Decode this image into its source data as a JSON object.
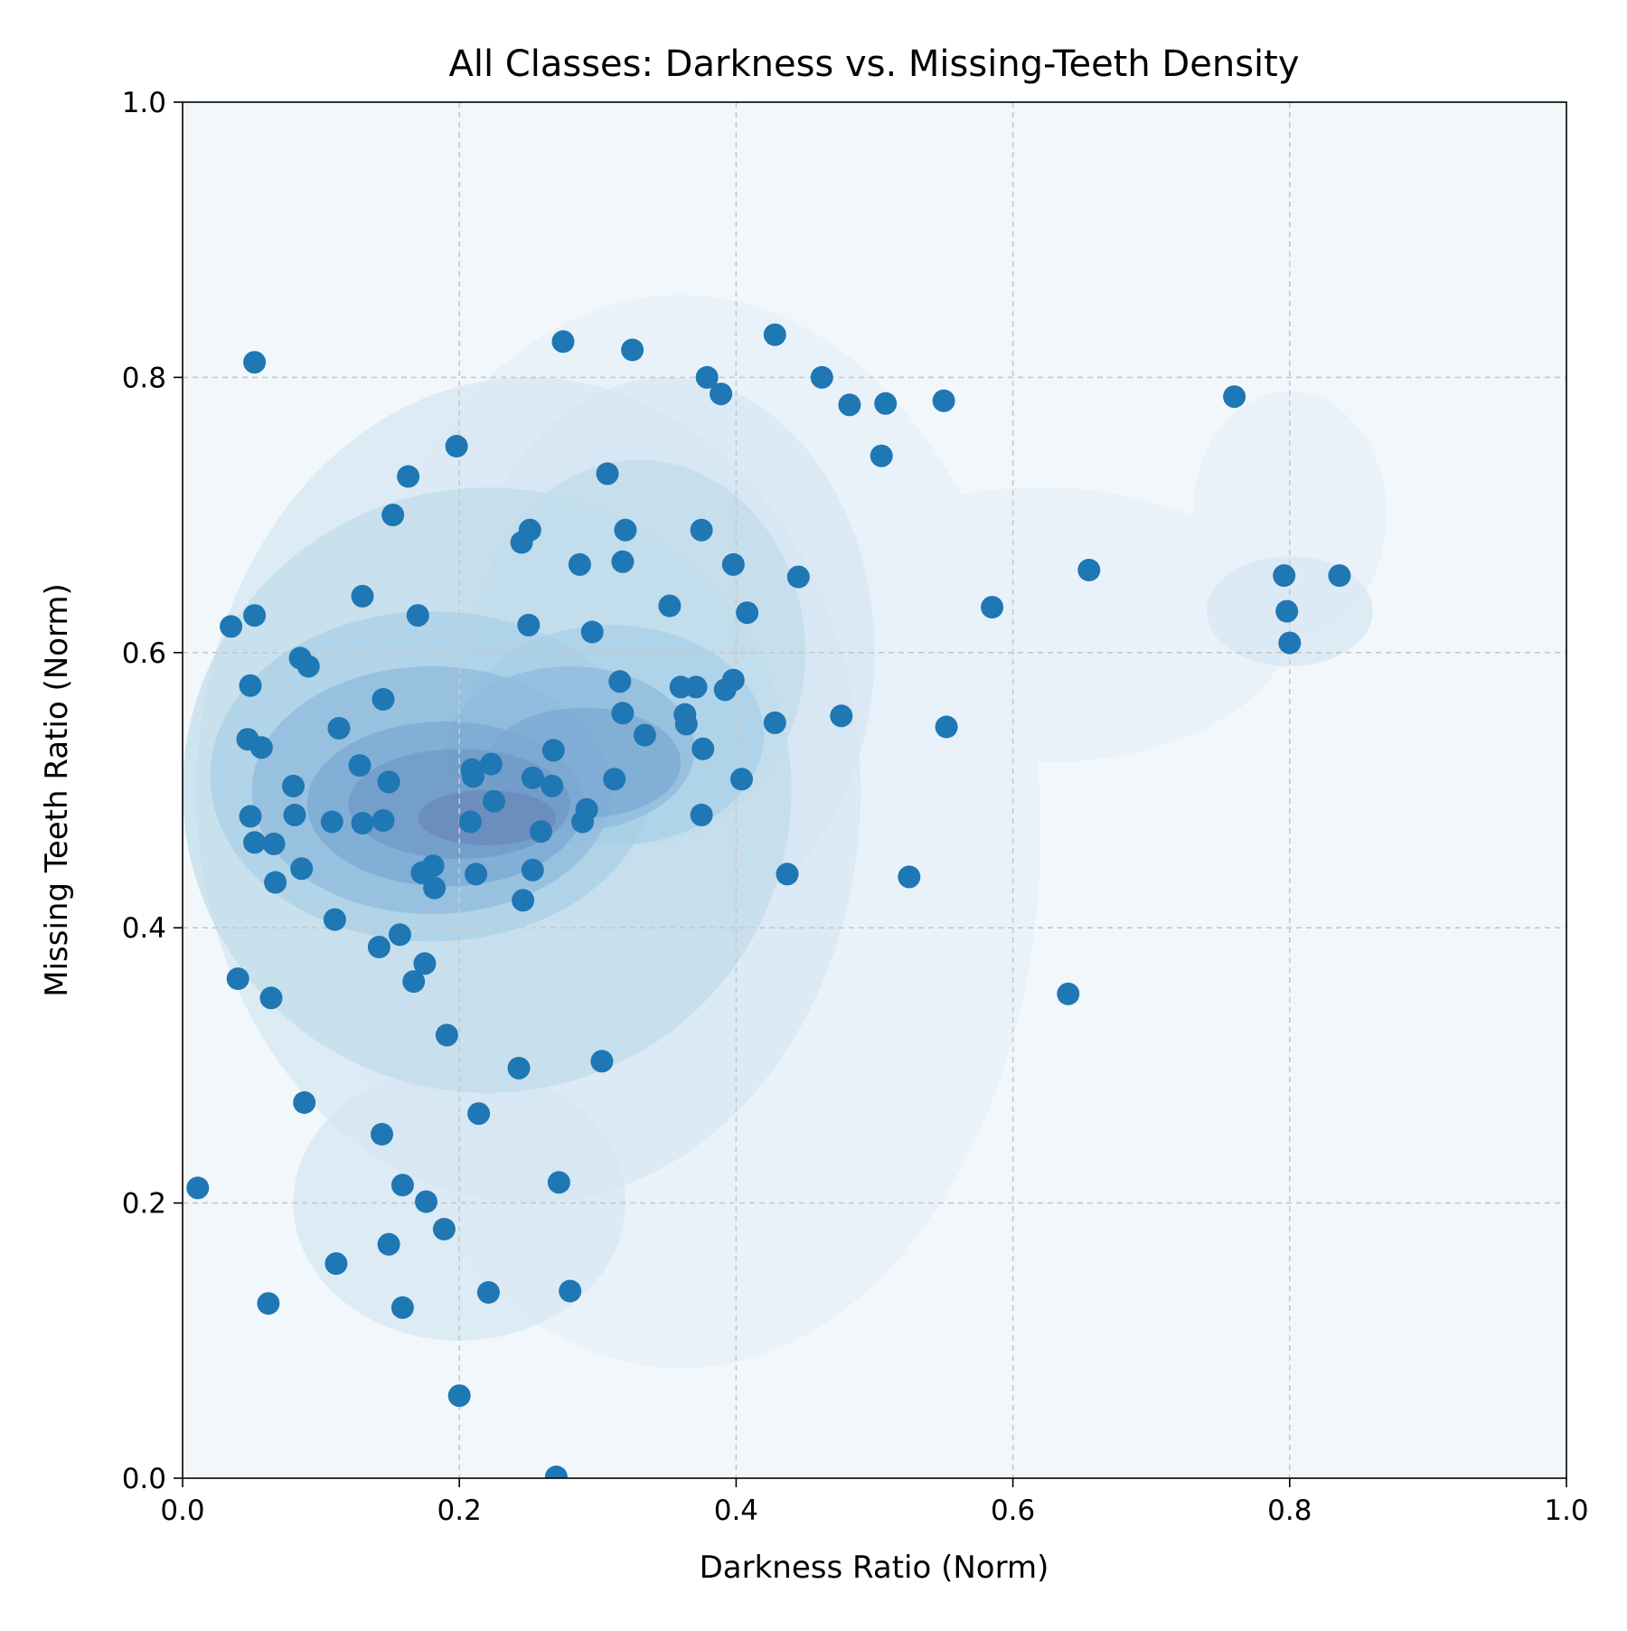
{
  "chart_data": {
    "type": "scatter",
    "title": "All Classes: Darkness vs. Missing-Teeth Density",
    "xlabel": "Darkness Ratio (Norm)",
    "ylabel": "Missing Teeth Ratio (Norm)",
    "xlim": [
      0.0,
      1.0
    ],
    "ylim": [
      0.0,
      1.0
    ],
    "xticks": [
      "0.0",
      "0.2",
      "0.4",
      "0.6",
      "0.8",
      "1.0"
    ],
    "yticks": [
      "0.0",
      "0.2",
      "0.4",
      "0.6",
      "0.8",
      "1.0"
    ],
    "grid": true,
    "background_overlay": "kde-density-contours",
    "colors": {
      "point": "#1f77b4",
      "axes_background": "#f1f7fb",
      "density_levels": [
        "#e7f0f8",
        "#d6e6f2",
        "#c1dcea",
        "#a8cfe6",
        "#8fbadd",
        "#7aa7d1",
        "#6f99c6",
        "#6a88b8"
      ]
    },
    "points": [
      [
        0.052,
        0.811
      ],
      [
        0.275,
        0.826
      ],
      [
        0.325,
        0.82
      ],
      [
        0.428,
        0.831
      ],
      [
        0.379,
        0.8
      ],
      [
        0.389,
        0.788
      ],
      [
        0.462,
        0.8
      ],
      [
        0.482,
        0.78
      ],
      [
        0.508,
        0.781
      ],
      [
        0.55,
        0.783
      ],
      [
        0.76,
        0.786
      ],
      [
        0.505,
        0.743
      ],
      [
        0.198,
        0.75
      ],
      [
        0.163,
        0.728
      ],
      [
        0.307,
        0.73
      ],
      [
        0.152,
        0.7
      ],
      [
        0.251,
        0.689
      ],
      [
        0.245,
        0.68
      ],
      [
        0.32,
        0.689
      ],
      [
        0.375,
        0.689
      ],
      [
        0.287,
        0.664
      ],
      [
        0.318,
        0.666
      ],
      [
        0.398,
        0.664
      ],
      [
        0.445,
        0.655
      ],
      [
        0.655,
        0.66
      ],
      [
        0.796,
        0.656
      ],
      [
        0.836,
        0.656
      ],
      [
        0.13,
        0.641
      ],
      [
        0.352,
        0.634
      ],
      [
        0.585,
        0.633
      ],
      [
        0.798,
        0.63
      ],
      [
        0.052,
        0.627
      ],
      [
        0.17,
        0.627
      ],
      [
        0.408,
        0.629
      ],
      [
        0.035,
        0.619
      ],
      [
        0.25,
        0.62
      ],
      [
        0.296,
        0.615
      ],
      [
        0.8,
        0.607
      ],
      [
        0.085,
        0.596
      ],
      [
        0.091,
        0.59
      ],
      [
        0.316,
        0.579
      ],
      [
        0.36,
        0.575
      ],
      [
        0.371,
        0.575
      ],
      [
        0.049,
        0.576
      ],
      [
        0.398,
        0.58
      ],
      [
        0.392,
        0.573
      ],
      [
        0.145,
        0.566
      ],
      [
        0.318,
        0.556
      ],
      [
        0.363,
        0.555
      ],
      [
        0.364,
        0.548
      ],
      [
        0.476,
        0.554
      ],
      [
        0.428,
        0.549
      ],
      [
        0.552,
        0.546
      ],
      [
        0.113,
        0.545
      ],
      [
        0.334,
        0.54
      ],
      [
        0.047,
        0.537
      ],
      [
        0.057,
        0.531
      ],
      [
        0.376,
        0.53
      ],
      [
        0.268,
        0.529
      ],
      [
        0.128,
        0.518
      ],
      [
        0.223,
        0.519
      ],
      [
        0.209,
        0.515
      ],
      [
        0.21,
        0.51
      ],
      [
        0.253,
        0.509
      ],
      [
        0.149,
        0.506
      ],
      [
        0.267,
        0.503
      ],
      [
        0.312,
        0.508
      ],
      [
        0.404,
        0.508
      ],
      [
        0.08,
        0.503
      ],
      [
        0.225,
        0.492
      ],
      [
        0.292,
        0.486
      ],
      [
        0.049,
        0.481
      ],
      [
        0.081,
        0.482
      ],
      [
        0.108,
        0.477
      ],
      [
        0.13,
        0.476
      ],
      [
        0.145,
        0.478
      ],
      [
        0.208,
        0.477
      ],
      [
        0.289,
        0.477
      ],
      [
        0.375,
        0.482
      ],
      [
        0.259,
        0.47
      ],
      [
        0.052,
        0.462
      ],
      [
        0.066,
        0.461
      ],
      [
        0.086,
        0.443
      ],
      [
        0.173,
        0.44
      ],
      [
        0.181,
        0.445
      ],
      [
        0.212,
        0.439
      ],
      [
        0.253,
        0.442
      ],
      [
        0.437,
        0.439
      ],
      [
        0.525,
        0.437
      ],
      [
        0.067,
        0.433
      ],
      [
        0.182,
        0.429
      ],
      [
        0.246,
        0.42
      ],
      [
        0.11,
        0.406
      ],
      [
        0.157,
        0.395
      ],
      [
        0.142,
        0.386
      ],
      [
        0.175,
        0.374
      ],
      [
        0.04,
        0.363
      ],
      [
        0.167,
        0.361
      ],
      [
        0.064,
        0.349
      ],
      [
        0.64,
        0.352
      ],
      [
        0.191,
        0.322
      ],
      [
        0.243,
        0.298
      ],
      [
        0.303,
        0.303
      ],
      [
        0.088,
        0.273
      ],
      [
        0.214,
        0.265
      ],
      [
        0.144,
        0.25
      ],
      [
        0.011,
        0.211
      ],
      [
        0.159,
        0.213
      ],
      [
        0.272,
        0.215
      ],
      [
        0.176,
        0.201
      ],
      [
        0.189,
        0.181
      ],
      [
        0.149,
        0.17
      ],
      [
        0.111,
        0.156
      ],
      [
        0.221,
        0.135
      ],
      [
        0.28,
        0.136
      ],
      [
        0.062,
        0.127
      ],
      [
        0.159,
        0.124
      ],
      [
        0.2,
        0.06
      ],
      [
        0.27,
        0.001
      ]
    ]
  }
}
